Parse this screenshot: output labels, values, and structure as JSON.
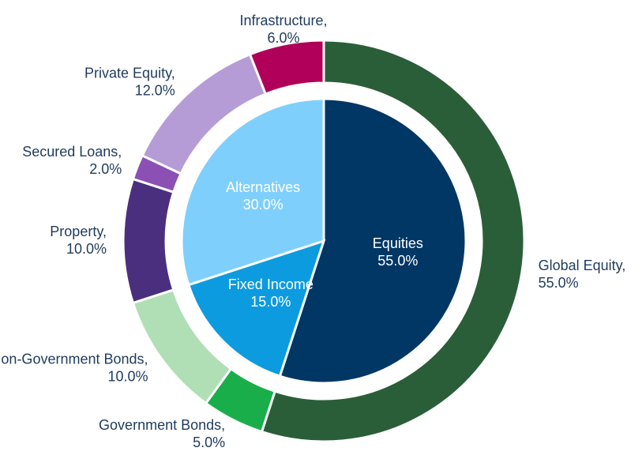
{
  "chart_data": [
    {
      "type": "pie",
      "categories": [
        "Equities",
        "Fixed Income",
        "Alternatives"
      ],
      "values": [
        55,
        15,
        30
      ],
      "value_labels": [
        "55.0%",
        "15.0%",
        "30.0%"
      ],
      "colors": [
        "#003764",
        "#0d9be0",
        "#7fcffd"
      ]
    },
    {
      "type": "donut",
      "categories": [
        "Global Equity,",
        "Government Bonds,",
        "Non-Government Bonds,",
        "Property,",
        "Secured Loans,",
        "Private Equity,",
        "Infrastructure,"
      ],
      "values": [
        55,
        5,
        10,
        10,
        2,
        12,
        6
      ],
      "value_labels": [
        "55.0%",
        "5.0%",
        "10.0%",
        "10.0%",
        "2.0%",
        "12.0%",
        "6.0%"
      ],
      "colors": [
        "#2a5e38",
        "#1aae4a",
        "#b0dfb5",
        "#4b2f7f",
        "#8c50b4",
        "#b59cd6",
        "#b0005a"
      ]
    }
  ]
}
